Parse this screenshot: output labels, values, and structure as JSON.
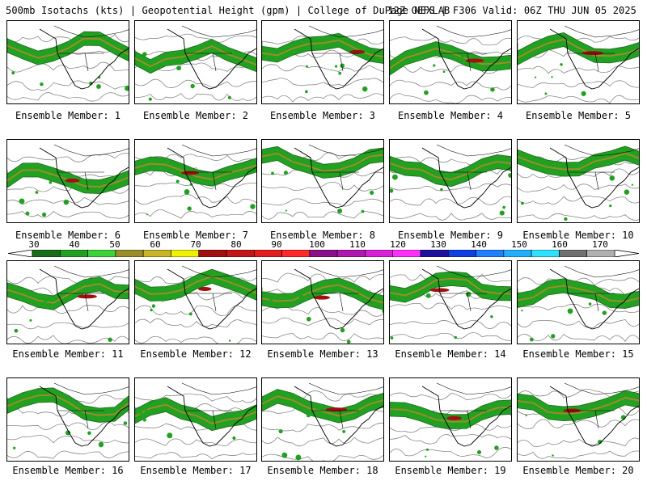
{
  "header": {
    "left": "500mb Isotachs (kts) | Geopotential Height (gpm) | College of DuPage NEXLAB",
    "right": "12Z GEFS | F306 Valid: 06Z THU JUN 05 2025"
  },
  "colorbar": {
    "tick_labels": [
      "30",
      "40",
      "50",
      "60",
      "70",
      "80",
      "90",
      "100",
      "110",
      "120",
      "130",
      "140",
      "150",
      "160",
      "170"
    ],
    "colors": [
      "#1a6b1a",
      "#22a022",
      "#3ad43a",
      "#9b8d2a",
      "#c9b428",
      "#eef000",
      "#a01010",
      "#c01818",
      "#e02020",
      "#ff2a2a",
      "#8a108a",
      "#b018b0",
      "#d820d8",
      "#ff30ff",
      "#2010a0",
      "#1040e0",
      "#2080ff",
      "#20b0ff",
      "#30e0ff",
      "#707070",
      "#b0b0b0"
    ]
  },
  "members": [
    {
      "label": "Ensemble Member: 1"
    },
    {
      "label": "Ensemble Member: 2"
    },
    {
      "label": "Ensemble Member: 3"
    },
    {
      "label": "Ensemble Member: 4"
    },
    {
      "label": "Ensemble Member: 5"
    },
    {
      "label": "Ensemble Member: 6"
    },
    {
      "label": "Ensemble Member: 7"
    },
    {
      "label": "Ensemble Member: 8"
    },
    {
      "label": "Ensemble Member: 9"
    },
    {
      "label": "Ensemble Member: 10"
    },
    {
      "label": "Ensemble Member: 11"
    },
    {
      "label": "Ensemble Member: 12"
    },
    {
      "label": "Ensemble Member: 13"
    },
    {
      "label": "Ensemble Member: 14"
    },
    {
      "label": "Ensemble Member: 15"
    },
    {
      "label": "Ensemble Member: 16"
    },
    {
      "label": "Ensemble Member: 17"
    },
    {
      "label": "Ensemble Member: 18"
    },
    {
      "label": "Ensemble Member: 19"
    },
    {
      "label": "Ensemble Member: 20"
    }
  ]
}
